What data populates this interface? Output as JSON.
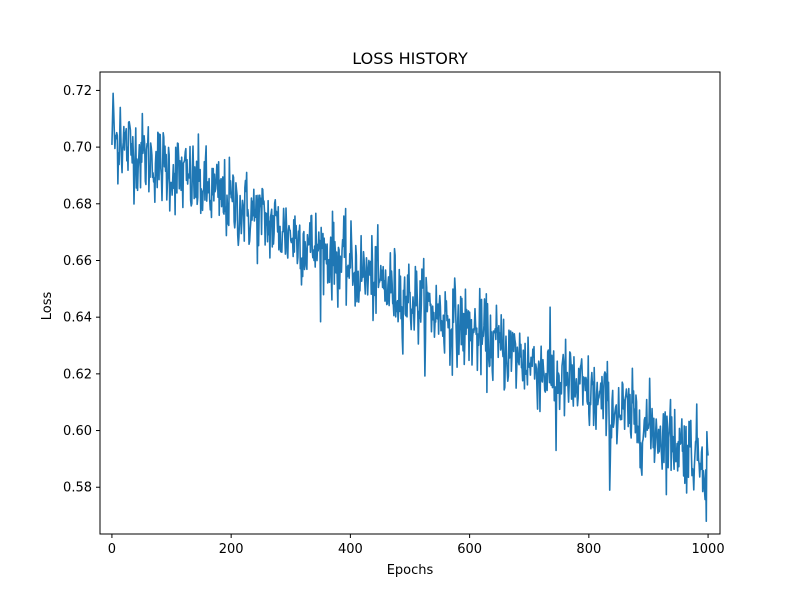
{
  "chart_data": {
    "type": "line",
    "title": "LOSS HISTORY",
    "xlabel": "Epochs",
    "ylabel": "Loss",
    "xlim": [
      -20,
      1020
    ],
    "ylim": [
      0.5635,
      0.7265
    ],
    "xticks": [
      0,
      200,
      400,
      600,
      800,
      1000
    ],
    "xtick_labels": [
      "0",
      "200",
      "400",
      "600",
      "800",
      "1000"
    ],
    "yticks": [
      0.58,
      0.6,
      0.62,
      0.64,
      0.66,
      0.68,
      0.7,
      0.72
    ],
    "ytick_labels": [
      "0.58",
      "0.60",
      "0.62",
      "0.64",
      "0.66",
      "0.68",
      "0.70",
      "0.72"
    ],
    "grid": false,
    "legend": "none",
    "series": [
      {
        "color": "#1f77b4",
        "x_range": [
          0,
          1000
        ],
        "points_count": 1001,
        "trend": {
          "start": 0.703,
          "end": 0.59
        },
        "noise_amplitude": 0.012,
        "annotated_extremes": [
          {
            "x": 2,
            "y": 0.719
          },
          {
            "x": 14,
            "y": 0.714
          },
          {
            "x": 745,
            "y": 0.593
          },
          {
            "x": 835,
            "y": 0.579
          },
          {
            "x": 997,
            "y": 0.568
          }
        ]
      }
    ]
  }
}
